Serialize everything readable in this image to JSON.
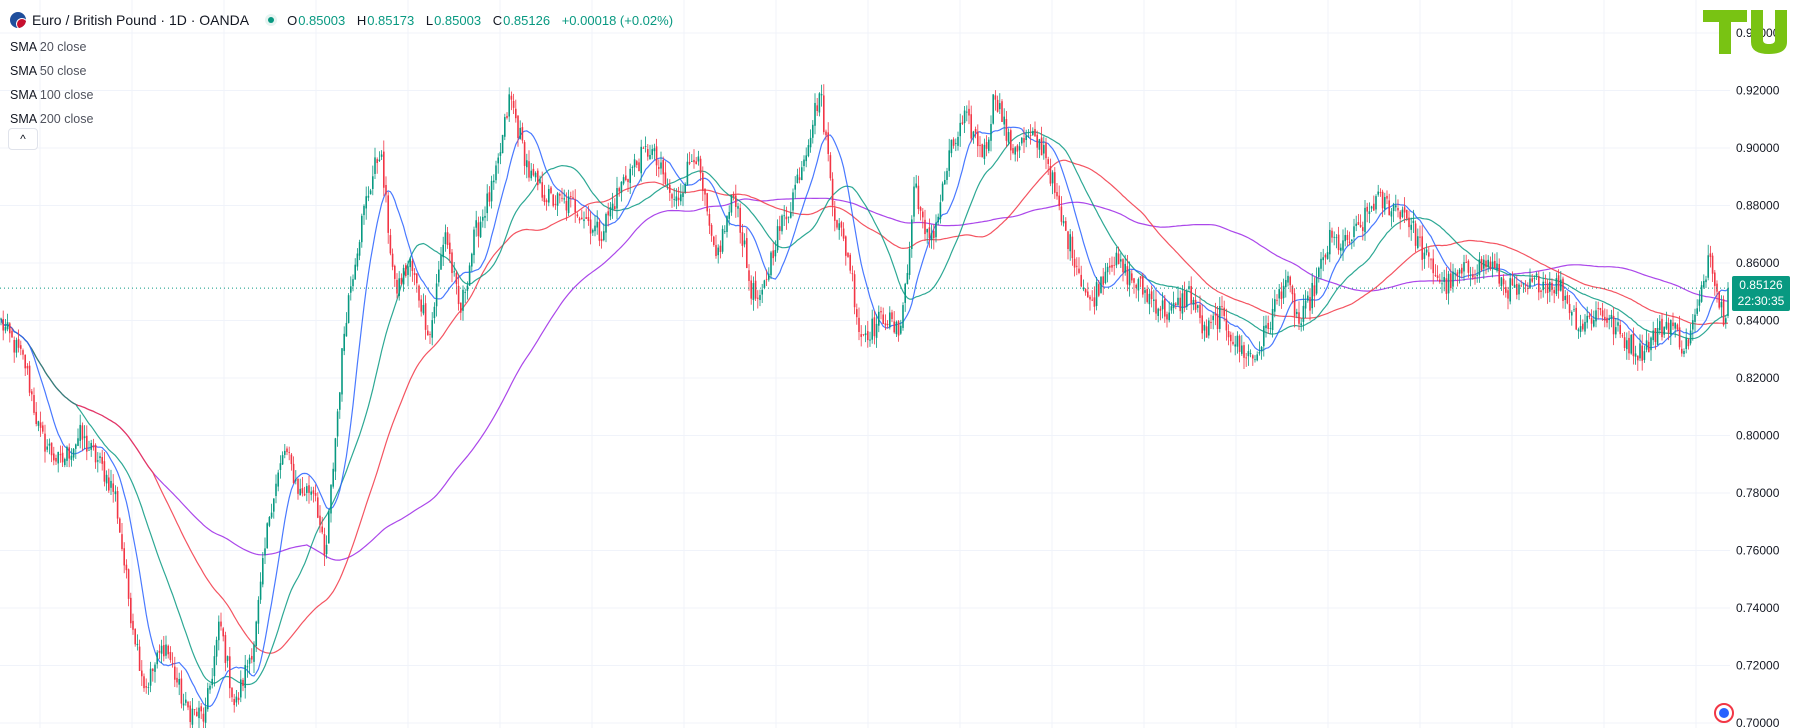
{
  "header": {
    "symbol": "Euro / British Pound · 1D · OANDA",
    "ohlc": {
      "o": "0.85003",
      "h": "0.85173",
      "l": "0.85003",
      "c": "0.85126",
      "change": "+0.00018 (+0.02%)"
    }
  },
  "legend": [
    {
      "name": "SMA",
      "param": "20 close"
    },
    {
      "name": "SMA",
      "param": "50 close"
    },
    {
      "name": "SMA",
      "param": "100 close"
    },
    {
      "name": "SMA",
      "param": "200 close"
    }
  ],
  "collapse_label": "^",
  "logo": {
    "text": "TU",
    "color": "#79c313"
  },
  "price_badge": {
    "price": "0.85126",
    "countdown": "22:30:35"
  },
  "colors": {
    "up": "#089981",
    "down": "#f23645",
    "grid": "#f0f3fa",
    "sma20": "#2962ff",
    "sma50": "#089981",
    "sma100": "#f23645",
    "sma200": "#9c27e6"
  },
  "chart_data": {
    "type": "candlestick",
    "y_ticks": [
      "0.70000",
      "0.72000",
      "0.74000",
      "0.76000",
      "0.78000",
      "0.80000",
      "0.82000",
      "0.84000",
      "0.86000",
      "0.88000",
      "0.90000",
      "0.92000",
      "0.94000"
    ],
    "ylim": [
      0.7,
      0.94
    ],
    "last_price": 0.85126,
    "price_path": [
      [
        0,
        0.84
      ],
      [
        25,
        0.825
      ],
      [
        40,
        0.8
      ],
      [
        60,
        0.79
      ],
      [
        80,
        0.8
      ],
      [
        100,
        0.79
      ],
      [
        115,
        0.78
      ],
      [
        130,
        0.74
      ],
      [
        145,
        0.712
      ],
      [
        165,
        0.728
      ],
      [
        185,
        0.705
      ],
      [
        205,
        0.702
      ],
      [
        220,
        0.735
      ],
      [
        235,
        0.705
      ],
      [
        255,
        0.73
      ],
      [
        270,
        0.775
      ],
      [
        285,
        0.795
      ],
      [
        300,
        0.78
      ],
      [
        315,
        0.782
      ],
      [
        325,
        0.755
      ],
      [
        345,
        0.84
      ],
      [
        355,
        0.862
      ],
      [
        365,
        0.88
      ],
      [
        380,
        0.9
      ],
      [
        395,
        0.85
      ],
      [
        410,
        0.86
      ],
      [
        430,
        0.835
      ],
      [
        445,
        0.872
      ],
      [
        460,
        0.842
      ],
      [
        475,
        0.87
      ],
      [
        495,
        0.888
      ],
      [
        510,
        0.918
      ],
      [
        530,
        0.89
      ],
      [
        550,
        0.882
      ],
      [
        575,
        0.88
      ],
      [
        600,
        0.87
      ],
      [
        625,
        0.89
      ],
      [
        650,
        0.9
      ],
      [
        675,
        0.88
      ],
      [
        695,
        0.9
      ],
      [
        715,
        0.86
      ],
      [
        735,
        0.885
      ],
      [
        750,
        0.852
      ],
      [
        760,
        0.845
      ],
      [
        775,
        0.868
      ],
      [
        790,
        0.88
      ],
      [
        808,
        0.903
      ],
      [
        820,
        0.92
      ],
      [
        835,
        0.877
      ],
      [
        850,
        0.86
      ],
      [
        860,
        0.835
      ],
      [
        875,
        0.838
      ],
      [
        885,
        0.842
      ],
      [
        898,
        0.835
      ],
      [
        908,
        0.858
      ],
      [
        915,
        0.89
      ],
      [
        925,
        0.868
      ],
      [
        935,
        0.872
      ],
      [
        950,
        0.898
      ],
      [
        965,
        0.91
      ],
      [
        985,
        0.898
      ],
      [
        995,
        0.92
      ],
      [
        1010,
        0.9
      ],
      [
        1030,
        0.903
      ],
      [
        1045,
        0.9
      ],
      [
        1060,
        0.876
      ],
      [
        1075,
        0.862
      ],
      [
        1090,
        0.845
      ],
      [
        1110,
        0.862
      ],
      [
        1130,
        0.855
      ],
      [
        1150,
        0.848
      ],
      [
        1170,
        0.842
      ],
      [
        1190,
        0.85
      ],
      [
        1205,
        0.835
      ],
      [
        1220,
        0.842
      ],
      [
        1240,
        0.83
      ],
      [
        1255,
        0.827
      ],
      [
        1270,
        0.84
      ],
      [
        1285,
        0.855
      ],
      [
        1300,
        0.838
      ],
      [
        1315,
        0.852
      ],
      [
        1330,
        0.868
      ],
      [
        1345,
        0.866
      ],
      [
        1360,
        0.872
      ],
      [
        1375,
        0.882
      ],
      [
        1390,
        0.88
      ],
      [
        1405,
        0.878
      ],
      [
        1425,
        0.862
      ],
      [
        1445,
        0.852
      ],
      [
        1470,
        0.858
      ],
      [
        1490,
        0.86
      ],
      [
        1505,
        0.852
      ],
      [
        1520,
        0.849
      ],
      [
        1540,
        0.854
      ],
      [
        1560,
        0.852
      ],
      [
        1580,
        0.838
      ],
      [
        1600,
        0.844
      ],
      [
        1620,
        0.835
      ],
      [
        1640,
        0.829
      ],
      [
        1655,
        0.835
      ],
      [
        1670,
        0.84
      ],
      [
        1685,
        0.83
      ],
      [
        1700,
        0.846
      ],
      [
        1710,
        0.866
      ],
      [
        1718,
        0.848
      ],
      [
        1724,
        0.842
      ],
      [
        1730,
        0.851
      ]
    ],
    "series": [
      {
        "name": "SMA 20 close",
        "color": "#2962ff"
      },
      {
        "name": "SMA 50 close",
        "color": "#089981"
      },
      {
        "name": "SMA 100 close",
        "color": "#f23645"
      },
      {
        "name": "SMA 200 close",
        "color": "#9c27e6"
      }
    ]
  }
}
